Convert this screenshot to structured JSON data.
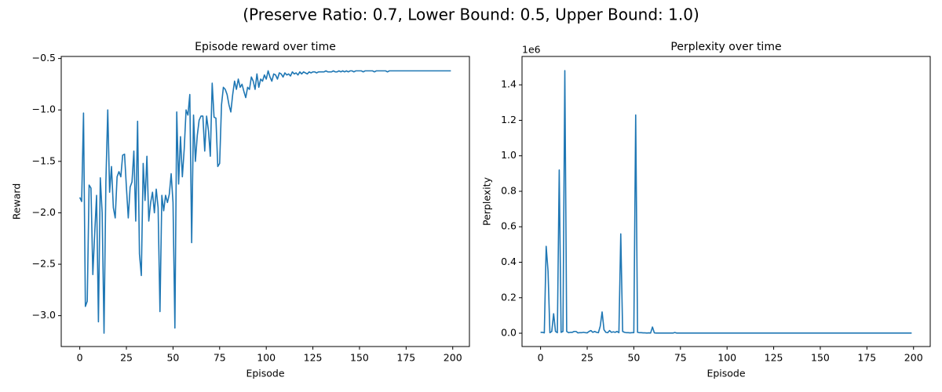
{
  "title": "(Preserve Ratio: 0.7, Lower Bound: 0.5, Upper Bound: 1.0)",
  "chart_data": [
    {
      "type": "line",
      "title": "Episode reward over time",
      "xlabel": "Episode",
      "ylabel": "Reward",
      "color": "#1f77b4",
      "xlim": [
        -9.95,
        208.95
      ],
      "xticks": [
        0,
        25,
        50,
        75,
        100,
        125,
        150,
        175,
        200
      ],
      "ylim": [
        -3.3,
        -0.48
      ],
      "yticks": [
        {
          "value": -3.0,
          "label": "−3.0"
        },
        {
          "value": -2.5,
          "label": "−2.5"
        },
        {
          "value": -2.0,
          "label": "−2.0"
        },
        {
          "value": -1.5,
          "label": "−1.5"
        },
        {
          "value": -1.0,
          "label": "−1.0"
        },
        {
          "value": -0.5,
          "label": "−0.5"
        }
      ],
      "x": [
        0,
        1,
        2,
        3,
        4,
        5,
        6,
        7,
        8,
        9,
        10,
        11,
        12,
        13,
        14,
        15,
        16,
        17,
        18,
        19,
        20,
        21,
        22,
        23,
        24,
        25,
        26,
        27,
        28,
        29,
        30,
        31,
        32,
        33,
        34,
        35,
        36,
        37,
        38,
        39,
        40,
        41,
        42,
        43,
        44,
        45,
        46,
        47,
        48,
        49,
        50,
        51,
        52,
        53,
        54,
        55,
        56,
        57,
        58,
        59,
        60,
        61,
        62,
        63,
        64,
        65,
        66,
        67,
        68,
        69,
        70,
        71,
        72,
        73,
        74,
        75,
        76,
        77,
        78,
        79,
        80,
        81,
        82,
        83,
        84,
        85,
        86,
        87,
        88,
        89,
        90,
        91,
        92,
        93,
        94,
        95,
        96,
        97,
        98,
        99,
        100,
        101,
        102,
        103,
        104,
        105,
        106,
        107,
        108,
        109,
        110,
        111,
        112,
        113,
        114,
        115,
        116,
        117,
        118,
        119,
        120,
        121,
        122,
        123,
        124,
        125,
        126,
        127,
        128,
        129,
        130,
        131,
        132,
        133,
        134,
        135,
        136,
        137,
        138,
        139,
        140,
        141,
        142,
        143,
        144,
        145,
        146,
        147,
        148,
        149,
        150,
        151,
        152,
        153,
        154,
        155,
        156,
        157,
        158,
        159,
        160,
        161,
        162,
        163,
        164,
        165,
        166,
        167,
        168,
        169,
        170,
        171,
        172,
        173,
        174,
        175,
        176,
        177,
        178,
        179,
        180,
        181,
        182,
        183,
        184,
        185,
        186,
        187,
        188,
        189,
        190,
        191,
        192,
        193,
        194,
        195,
        196,
        197,
        198,
        199
      ],
      "values": [
        -1.85,
        -1.89,
        -1.03,
        -2.91,
        -2.86,
        -1.73,
        -1.76,
        -2.6,
        -2.2,
        -1.83,
        -3.06,
        -1.66,
        -2.0,
        -3.17,
        -1.7,
        -1.0,
        -1.8,
        -1.55,
        -1.95,
        -2.05,
        -1.65,
        -1.6,
        -1.65,
        -1.44,
        -1.43,
        -1.75,
        -2.05,
        -1.75,
        -1.7,
        -1.4,
        -2.08,
        -1.11,
        -2.4,
        -2.61,
        -1.52,
        -1.88,
        -1.45,
        -2.08,
        -1.9,
        -1.8,
        -2.0,
        -1.77,
        -1.95,
        -2.96,
        -1.83,
        -1.98,
        -1.83,
        -1.9,
        -1.82,
        -1.62,
        -1.9,
        -3.12,
        -1.02,
        -1.72,
        -1.26,
        -1.65,
        -1.38,
        -1.0,
        -1.05,
        -0.85,
        -2.29,
        -1.05,
        -1.5,
        -1.25,
        -1.1,
        -1.06,
        -1.06,
        -1.4,
        -1.06,
        -1.2,
        -1.45,
        -0.74,
        -1.07,
        -1.08,
        -1.55,
        -1.52,
        -0.95,
        -0.78,
        -0.8,
        -0.85,
        -0.95,
        -1.02,
        -0.85,
        -0.72,
        -0.8,
        -0.7,
        -0.78,
        -0.75,
        -0.82,
        -0.88,
        -0.78,
        -0.8,
        -0.68,
        -0.72,
        -0.8,
        -0.65,
        -0.78,
        -0.7,
        -0.72,
        -0.66,
        -0.7,
        -0.62,
        -0.68,
        -0.72,
        -0.65,
        -0.66,
        -0.7,
        -0.64,
        -0.65,
        -0.68,
        -0.64,
        -0.66,
        -0.65,
        -0.67,
        -0.63,
        -0.65,
        -0.64,
        -0.66,
        -0.63,
        -0.65,
        -0.63,
        -0.64,
        -0.65,
        -0.63,
        -0.64,
        -0.63,
        -0.63,
        -0.64,
        -0.63,
        -0.63,
        -0.63,
        -0.63,
        -0.62,
        -0.63,
        -0.63,
        -0.63,
        -0.62,
        -0.63,
        -0.63,
        -0.62,
        -0.63,
        -0.62,
        -0.63,
        -0.62,
        -0.63,
        -0.62,
        -0.62,
        -0.63,
        -0.62,
        -0.62,
        -0.62,
        -0.62,
        -0.63,
        -0.62,
        -0.62,
        -0.62,
        -0.62,
        -0.62,
        -0.63,
        -0.62,
        -0.62,
        -0.62,
        -0.62,
        -0.62,
        -0.62,
        -0.63,
        -0.62,
        -0.62,
        -0.62,
        -0.62,
        -0.62,
        -0.62,
        -0.62,
        -0.62,
        -0.62,
        -0.62,
        -0.62,
        -0.62,
        -0.62,
        -0.62,
        -0.62,
        -0.62,
        -0.62,
        -0.62,
        -0.62,
        -0.62,
        -0.62,
        -0.62,
        -0.62,
        -0.62,
        -0.62,
        -0.62,
        -0.62,
        -0.62,
        -0.62,
        -0.62,
        -0.62,
        -0.62,
        -0.62,
        -0.62
      ]
    },
    {
      "type": "line",
      "title": "Perplexity over time",
      "xlabel": "Episode",
      "ylabel": "Perplexity",
      "y_offset_label": "1e6",
      "color": "#1f77b4",
      "xlim": [
        -9.95,
        208.95
      ],
      "xticks": [
        0,
        25,
        50,
        75,
        100,
        125,
        150,
        175,
        200
      ],
      "ylim": [
        -0.075,
        1.56
      ],
      "yticks": [
        {
          "value": 0,
          "label": "0.0"
        },
        {
          "value": 0.2,
          "label": "0.2"
        },
        {
          "value": 0.4,
          "label": "0.4"
        },
        {
          "value": 0.6,
          "label": "0.6"
        },
        {
          "value": 0.8,
          "label": "0.8"
        },
        {
          "value": 1,
          "label": "1.0"
        },
        {
          "value": 1.2,
          "label": "1.2"
        },
        {
          "value": 1.4,
          "label": "1.4"
        }
      ],
      "x": [
        0,
        1,
        2,
        3,
        4,
        5,
        6,
        7,
        8,
        9,
        10,
        11,
        12,
        13,
        14,
        15,
        16,
        17,
        18,
        19,
        20,
        21,
        22,
        23,
        24,
        25,
        26,
        27,
        28,
        29,
        30,
        31,
        32,
        33,
        34,
        35,
        36,
        37,
        38,
        39,
        40,
        41,
        42,
        43,
        44,
        45,
        46,
        47,
        48,
        49,
        50,
        51,
        52,
        53,
        54,
        55,
        56,
        57,
        58,
        59,
        60,
        61,
        62,
        63,
        64,
        65,
        66,
        67,
        68,
        69,
        70,
        71,
        72,
        73,
        74,
        75,
        76,
        77,
        78,
        79,
        80,
        81,
        82,
        83,
        84,
        85,
        86,
        87,
        88,
        89,
        90,
        91,
        92,
        93,
        94,
        95,
        96,
        97,
        98,
        99,
        100,
        101,
        102,
        103,
        104,
        105,
        106,
        107,
        108,
        109,
        110,
        111,
        112,
        113,
        114,
        115,
        116,
        117,
        118,
        119,
        120,
        121,
        122,
        123,
        124,
        125,
        126,
        127,
        128,
        129,
        130,
        131,
        132,
        133,
        134,
        135,
        136,
        137,
        138,
        139,
        140,
        141,
        142,
        143,
        144,
        145,
        146,
        147,
        148,
        149,
        150,
        151,
        152,
        153,
        154,
        155,
        156,
        157,
        158,
        159,
        160,
        161,
        162,
        163,
        164,
        165,
        166,
        167,
        168,
        169,
        170,
        171,
        172,
        173,
        174,
        175,
        176,
        177,
        178,
        179,
        180,
        181,
        182,
        183,
        184,
        185,
        186,
        187,
        188,
        189,
        190,
        191,
        192,
        193,
        194,
        195,
        196,
        197,
        198,
        199
      ],
      "values": [
        0.005,
        0.005,
        0.002,
        0.49,
        0.35,
        0.003,
        0.01,
        0.11,
        0.01,
        0.003,
        0.92,
        0.005,
        0.01,
        1.48,
        0.01,
        0.003,
        0.005,
        0.005,
        0.01,
        0.01,
        0.002,
        0.003,
        0.003,
        0.005,
        0.003,
        0.002,
        0.01,
        0.015,
        0.005,
        0.01,
        0.005,
        0.003,
        0.04,
        0.12,
        0.02,
        0.005,
        0.003,
        0.015,
        0.005,
        0.008,
        0.005,
        0.01,
        0.003,
        0.56,
        0.01,
        0.005,
        0.003,
        0.003,
        0.002,
        0.003,
        0.003,
        1.23,
        0.005,
        0.003,
        0.003,
        0.002,
        0.002,
        0.001,
        0.002,
        0.001,
        0.035,
        0.002,
        0.001,
        0.001,
        0.001,
        0.001,
        0.001,
        0.001,
        0.001,
        0.001,
        0.001,
        0.001,
        0.004,
        0.001,
        0.001,
        0.001,
        0.001,
        0.001,
        0.001,
        0.001,
        0.001,
        0.001,
        0.001,
        0.001,
        0.001,
        0.001,
        0.001,
        0.001,
        0.001,
        0.001,
        0.001,
        0.001,
        0.001,
        0.001,
        0.001,
        0.001,
        0.001,
        0.001,
        0.001,
        0.001,
        0.001,
        0.001,
        0.001,
        0.001,
        0.001,
        0.001,
        0.001,
        0.001,
        0.001,
        0.001,
        0.001,
        0.001,
        0.001,
        0.001,
        0.001,
        0.001,
        0.001,
        0.001,
        0.001,
        0.001,
        0.001,
        0.001,
        0.001,
        0.001,
        0.001,
        0.001,
        0.001,
        0.001,
        0.001,
        0.001,
        0.001,
        0.001,
        0.001,
        0.001,
        0.001,
        0.001,
        0.001,
        0.001,
        0.001,
        0.001,
        0.001,
        0.001,
        0.001,
        0.001,
        0.001,
        0.001,
        0.001,
        0.001,
        0.001,
        0.001,
        0.001,
        0.001,
        0.001,
        0.001,
        0.001,
        0.001,
        0.001,
        0.001,
        0.001,
        0.001,
        0.001,
        0.001,
        0.001,
        0.001,
        0.001,
        0.001,
        0.001,
        0.001,
        0.001,
        0.001,
        0.001,
        0.001,
        0.001,
        0.001,
        0.001,
        0.001,
        0.001,
        0.001,
        0.001,
        0.001,
        0.001,
        0.001,
        0.001,
        0.001,
        0.001,
        0.001,
        0.001,
        0.001,
        0.001,
        0.001,
        0.001,
        0.001,
        0.001,
        0.001,
        0.001,
        0.001,
        0.001,
        0.001,
        0.001,
        0.001
      ]
    }
  ]
}
